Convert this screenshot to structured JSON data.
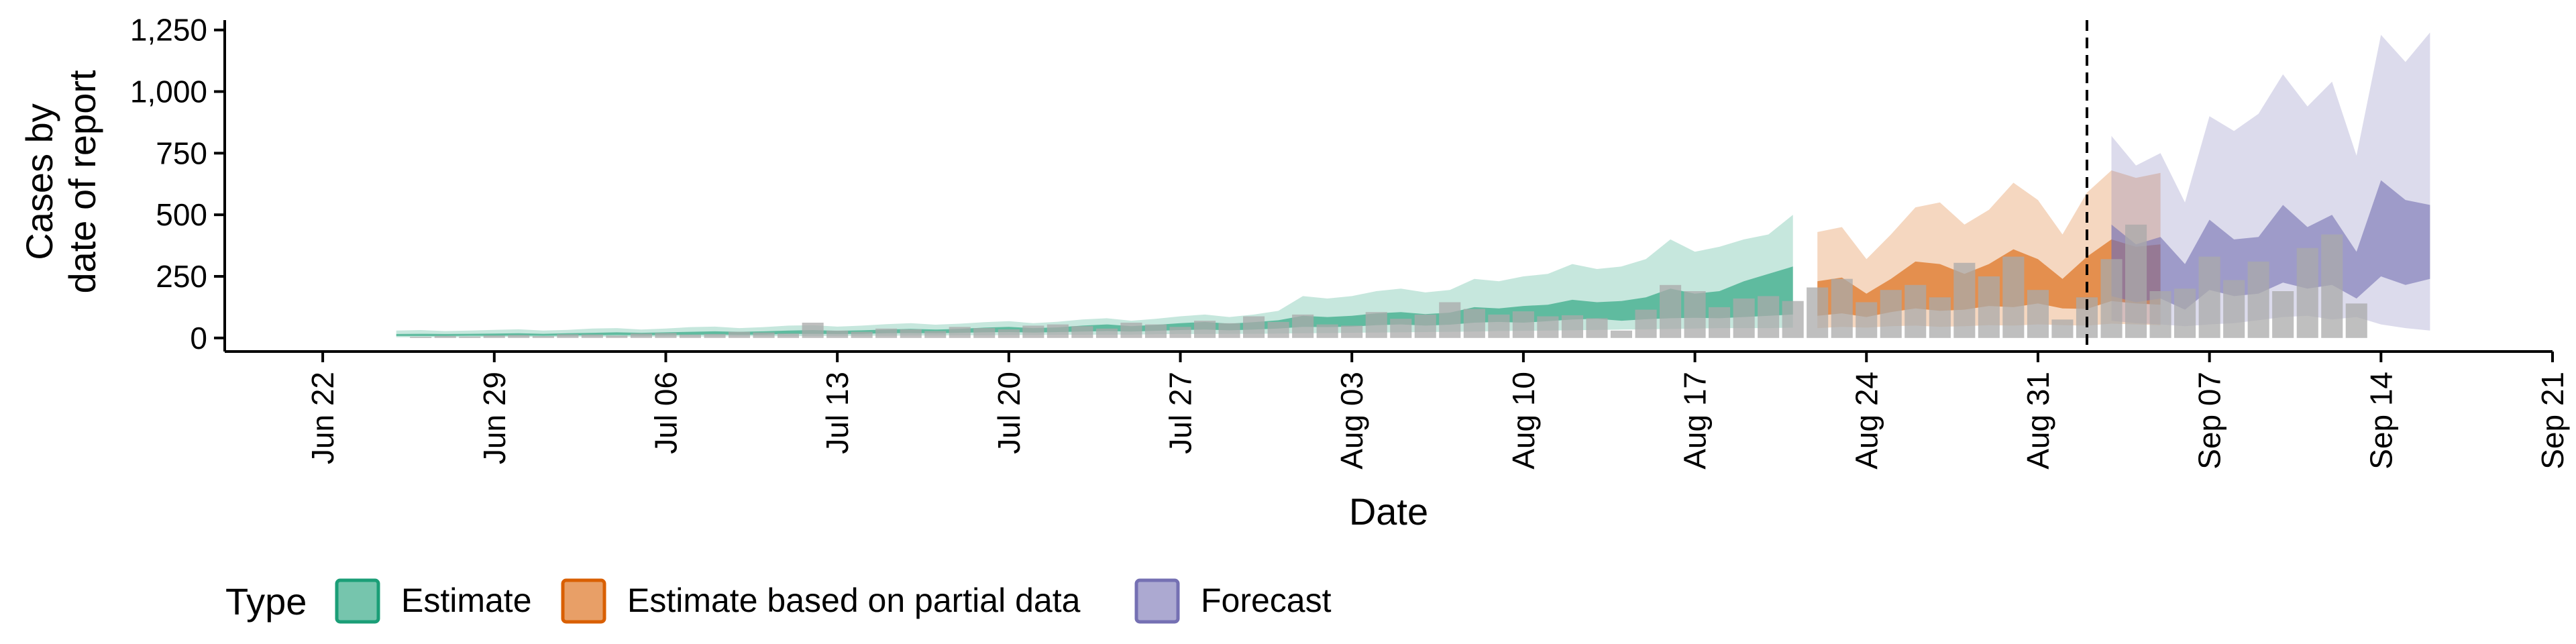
{
  "chart_data": {
    "type": "area",
    "xlabel": "Date",
    "ylabel_lines": [
      "Cases by",
      "date of report"
    ],
    "ylim": [
      -55,
      1290
    ],
    "xlim": [
      "2020-06-18",
      "2020-09-21"
    ],
    "y_ticks": [
      0,
      250,
      500,
      750,
      1000,
      1250
    ],
    "y_tick_labels": [
      "0",
      "250",
      "500",
      "750",
      "1,000",
      "1,250"
    ],
    "x_ticks": [
      "2020-06-22",
      "2020-06-29",
      "2020-07-06",
      "2020-07-13",
      "2020-07-20",
      "2020-07-27",
      "2020-08-03",
      "2020-08-10",
      "2020-08-17",
      "2020-08-24",
      "2020-08-31",
      "2020-09-07",
      "2020-09-14",
      "2020-09-21"
    ],
    "x_tick_labels": [
      "Jun 22",
      "Jun 29",
      "Jul 06",
      "Jul 13",
      "Jul 20",
      "Jul 27",
      "Aug 03",
      "Aug 10",
      "Aug 17",
      "Aug 24",
      "Aug 31",
      "Sep 07",
      "Sep 14",
      "Sep 21"
    ],
    "vline_date": "2020-09-02",
    "legend": {
      "title": "Type",
      "position": "bottom",
      "items": [
        {
          "label": "Estimate",
          "fill": "#1B9E77",
          "border": "#1B9E77"
        },
        {
          "label": "Estimate based on partial data",
          "fill": "#D95F02",
          "border": "#D95F02"
        },
        {
          "label": "Forecast",
          "fill": "#7570B3",
          "border": "#7570B3"
        }
      ]
    },
    "series": [
      {
        "name": "Estimate",
        "color": "#1B9E77",
        "x_start": "2020-06-25",
        "lower90": [
          3,
          3,
          3,
          3,
          4,
          4,
          4,
          5,
          5,
          5,
          5,
          6,
          6,
          6,
          7,
          7,
          7,
          8,
          8,
          9,
          9,
          10,
          10,
          11,
          11,
          12,
          12,
          13,
          13,
          14,
          14,
          15,
          16,
          16,
          17,
          17,
          18,
          19,
          20,
          21,
          22,
          23,
          24,
          25,
          26,
          28,
          29,
          30,
          31,
          33,
          34,
          35,
          37,
          38,
          40,
          40,
          40,
          42
        ],
        "upper90": [
          30,
          32,
          28,
          30,
          33,
          35,
          30,
          33,
          38,
          40,
          34,
          38,
          44,
          46,
          40,
          44,
          50,
          52,
          46,
          50,
          56,
          60,
          54,
          58,
          64,
          68,
          60,
          66,
          75,
          80,
          70,
          78,
          88,
          95,
          85,
          95,
          110,
          170,
          160,
          170,
          190,
          200,
          185,
          195,
          240,
          230,
          250,
          260,
          300,
          280,
          290,
          320,
          400,
          350,
          370,
          400,
          420,
          500
        ],
        "lower50": [
          8,
          8,
          8,
          9,
          9,
          10,
          9,
          10,
          11,
          12,
          11,
          12,
          13,
          14,
          13,
          14,
          16,
          17,
          16,
          17,
          19,
          20,
          19,
          21,
          23,
          24,
          22,
          24,
          26,
          28,
          26,
          29,
          32,
          34,
          31,
          34,
          38,
          45,
          44,
          46,
          52,
          55,
          50,
          54,
          62,
          65,
          62,
          68,
          75,
          78,
          70,
          76,
          80,
          82,
          80,
          85,
          90,
          95
        ],
        "upper50": [
          16,
          17,
          16,
          17,
          18,
          19,
          17,
          19,
          21,
          23,
          21,
          23,
          25,
          27,
          25,
          27,
          30,
          32,
          29,
          31,
          34,
          37,
          34,
          37,
          42,
          45,
          40,
          43,
          50,
          55,
          48,
          53,
          60,
          65,
          58,
          64,
          72,
          90,
          85,
          90,
          100,
          105,
          97,
          103,
          125,
          120,
          130,
          135,
          155,
          145,
          150,
          165,
          200,
          180,
          190,
          230,
          260,
          290
        ],
        "median": [
          11,
          12,
          11,
          12,
          13,
          14,
          13,
          14,
          15,
          17,
          15,
          17,
          18,
          20,
          18,
          20,
          22,
          24,
          22,
          23,
          25,
          27,
          25,
          27,
          30,
          32,
          29,
          31,
          35,
          38,
          34,
          37,
          42,
          45,
          40,
          44,
          50,
          60,
          58,
          62,
          70,
          73,
          68,
          72,
          85,
          84,
          90,
          94,
          108,
          102,
          106,
          116,
          130,
          126,
          130,
          150,
          170,
          190
        ]
      },
      {
        "name": "Estimate based on partial data",
        "color": "#D95F02",
        "x_start": "2020-08-22",
        "lower90": [
          40,
          45,
          42,
          48,
          50,
          45,
          48,
          52,
          50,
          55,
          52,
          50,
          58,
          55,
          52
        ],
        "upper90": [
          430,
          450,
          320,
          420,
          530,
          550,
          460,
          520,
          630,
          560,
          420,
          590,
          680,
          650,
          670
        ],
        "lower50": [
          90,
          100,
          85,
          105,
          120,
          110,
          115,
          130,
          125,
          140,
          120,
          118,
          150,
          140,
          135
        ],
        "upper50": [
          230,
          245,
          180,
          240,
          310,
          300,
          260,
          300,
          360,
          320,
          240,
          330,
          400,
          370,
          380
        ],
        "median": [
          150,
          165,
          125,
          160,
          200,
          195,
          175,
          200,
          235,
          210,
          160,
          220,
          265,
          245,
          250
        ]
      },
      {
        "name": "Forecast",
        "color": "#7570B3",
        "x_start": "2020-09-03",
        "lower90": [
          70,
          60,
          55,
          48,
          55,
          60,
          72,
          85,
          90,
          75,
          85,
          55,
          40,
          30
        ],
        "upper90": [
          820,
          700,
          750,
          550,
          900,
          840,
          910,
          1070,
          940,
          1040,
          740,
          1230,
          1120,
          1240
        ],
        "lower50": [
          170,
          145,
          160,
          115,
          195,
          170,
          180,
          225,
          200,
          215,
          160,
          250,
          215,
          240
        ],
        "upper50": [
          460,
          380,
          410,
          300,
          480,
          400,
          410,
          540,
          450,
          500,
          350,
          640,
          560,
          540
        ],
        "median": [
          300,
          250,
          275,
          200,
          330,
          280,
          290,
          370,
          310,
          345,
          240,
          430,
          380,
          380
        ]
      }
    ],
    "observed_cases": {
      "color": "#A9A9A9",
      "x_start": "2020-06-26",
      "values": [
        5,
        8,
        6,
        10,
        12,
        8,
        15,
        14,
        10,
        18,
        20,
        14,
        16,
        25,
        22,
        18,
        62,
        30,
        25,
        38,
        35,
        28,
        45,
        40,
        35,
        50,
        55,
        48,
        38,
        62,
        55,
        45,
        70,
        60,
        88,
        65,
        95,
        55,
        50,
        105,
        78,
        95,
        145,
        118,
        95,
        108,
        88,
        92,
        80,
        30,
        115,
        215,
        190,
        125,
        160,
        170,
        150,
        205,
        240,
        145,
        195,
        215,
        165,
        305,
        250,
        330,
        195,
        75,
        165,
        320,
        460,
        190,
        200,
        330,
        235,
        310,
        190,
        365,
        420,
        140
      ]
    }
  }
}
